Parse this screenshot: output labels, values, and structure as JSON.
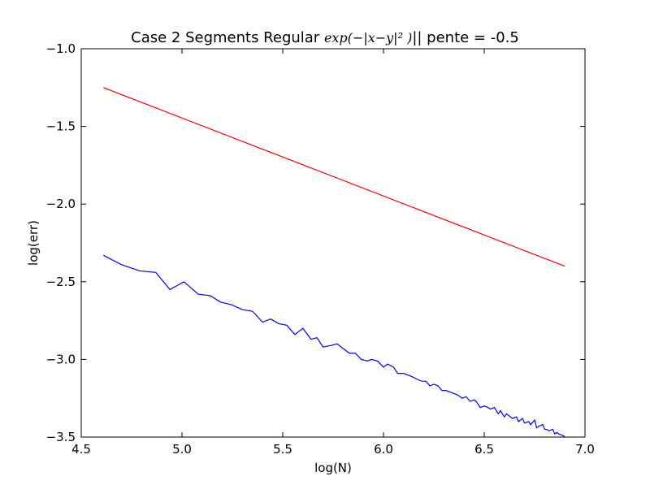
{
  "chart_data": {
    "type": "line",
    "title_prefix": "Case 2 Segments Regular ",
    "title_math": "exp(−|x−y|² )",
    "title_suffix": "|| pente = -0.5",
    "xlabel": "log(N)",
    "ylabel": "log(err)",
    "xlim": [
      4.5,
      7.0
    ],
    "ylim": [
      -3.5,
      -1.0
    ],
    "xticks": [
      "4.5",
      "5.0",
      "5.5",
      "6.0",
      "6.5",
      "7.0"
    ],
    "yticks": [
      "−1.0",
      "−1.5",
      "−2.0",
      "−2.5",
      "−3.0",
      "−3.5"
    ],
    "xtick_values": [
      4.5,
      5.0,
      5.5,
      6.0,
      6.5,
      7.0
    ],
    "ytick_values": [
      -1.0,
      -1.5,
      -2.0,
      -2.5,
      -3.0,
      -3.5
    ],
    "grid": false,
    "series": [
      {
        "color": "#ff0000",
        "x": [
          4.61,
          6.9
        ],
        "y": [
          -1.25,
          -2.4
        ]
      },
      {
        "color": "#0000ff",
        "x": [
          4.61,
          4.7,
          4.79,
          4.87,
          4.94,
          5.01,
          5.08,
          5.14,
          5.19,
          5.25,
          5.3,
          5.35,
          5.4,
          5.44,
          5.48,
          5.52,
          5.56,
          5.6,
          5.64,
          5.67,
          5.7,
          5.74,
          5.77,
          5.8,
          5.83,
          5.86,
          5.89,
          5.92,
          5.94,
          5.97,
          6.0,
          6.02,
          6.05,
          6.07,
          6.1,
          6.12,
          6.14,
          6.17,
          6.19,
          6.21,
          6.23,
          6.25,
          6.27,
          6.29,
          6.31,
          6.33,
          6.35,
          6.37,
          6.39,
          6.41,
          6.43,
          6.45,
          6.46,
          6.48,
          6.5,
          6.52,
          6.53,
          6.55,
          6.57,
          6.58,
          6.6,
          6.61,
          6.63,
          6.64,
          6.66,
          6.67,
          6.69,
          6.7,
          6.72,
          6.73,
          6.75,
          6.76,
          6.77,
          6.79,
          6.8,
          6.81,
          6.82,
          6.84,
          6.85,
          6.86,
          6.87,
          6.89,
          6.9
        ],
        "y": [
          -2.33,
          -2.39,
          -2.43,
          -2.44,
          -2.55,
          -2.5,
          -2.58,
          -2.59,
          -2.63,
          -2.65,
          -2.68,
          -2.69,
          -2.76,
          -2.74,
          -2.77,
          -2.78,
          -2.84,
          -2.8,
          -2.87,
          -2.86,
          -2.92,
          -2.91,
          -2.9,
          -2.93,
          -2.96,
          -2.96,
          -3.0,
          -3.01,
          -3.0,
          -3.01,
          -3.05,
          -3.03,
          -3.05,
          -3.09,
          -3.09,
          -3.1,
          -3.11,
          -3.13,
          -3.14,
          -3.14,
          -3.17,
          -3.16,
          -3.17,
          -3.2,
          -3.2,
          -3.21,
          -3.22,
          -3.23,
          -3.25,
          -3.24,
          -3.27,
          -3.26,
          -3.27,
          -3.31,
          -3.3,
          -3.31,
          -3.32,
          -3.31,
          -3.35,
          -3.33,
          -3.37,
          -3.35,
          -3.37,
          -3.38,
          -3.37,
          -3.4,
          -3.38,
          -3.41,
          -3.4,
          -3.42,
          -3.39,
          -3.44,
          -3.43,
          -3.42,
          -3.45,
          -3.45,
          -3.46,
          -3.45,
          -3.48,
          -3.47,
          -3.48,
          -3.49,
          -3.5
        ]
      }
    ]
  }
}
